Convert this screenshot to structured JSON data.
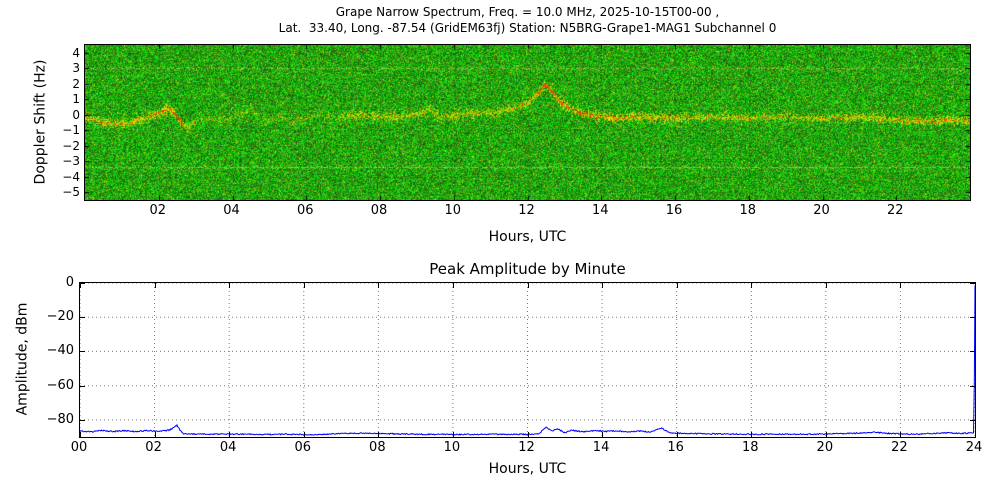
{
  "page": {
    "background": "#ffffff"
  },
  "spectrogram_panel": {
    "title_line1": "Grape Narrow Spectrum, Freq. = 10.0 MHz, 2025-10-15T00-00 ,",
    "title_line2": "Lat.  33.40, Long. -87.54 (GridEM63fj) Station: N5BRG-Grape1-MAG1 Subchannel 0",
    "xlabel": "Hours, UTC",
    "ylabel": "Doppler Shift (Hz)"
  },
  "amplitude_panel": {
    "title": "Peak Amplitude by Minute",
    "xlabel": "Hours, UTC",
    "ylabel": "Amplitude, dBm"
  },
  "chart_data": [
    {
      "type": "heatmap",
      "title": "Grape Narrow Spectrum, Freq. = 10.0 MHz, 2025-10-15T00-00 , Lat.  33.40, Long. -87.54 (GridEM63fj) Station: N5BRG-Grape1-MAG1 Subchannel 0",
      "xlabel": "Hours, UTC",
      "ylabel": "Doppler Shift (Hz)",
      "xlim": [
        0,
        24
      ],
      "ylim": [
        -5.5,
        4.5
      ],
      "xticks": [
        2,
        4,
        6,
        8,
        10,
        12,
        14,
        16,
        18,
        20,
        22
      ],
      "xtick_labels": [
        "02",
        "04",
        "06",
        "08",
        "10",
        "12",
        "14",
        "16",
        "18",
        "20",
        "22"
      ],
      "yticks": [
        4,
        3,
        2,
        1,
        0,
        -1,
        -2,
        -3,
        -4,
        -5
      ],
      "ytick_labels": [
        "4",
        "3",
        "2",
        "1",
        "0",
        "−1",
        "−2",
        "−3",
        "−4",
        "−5"
      ],
      "grid": true,
      "colors": {
        "background_noise": "#22aa00",
        "trace": "#ffee00",
        "hot_trace": "#ff2200",
        "streak": "#c8e65a"
      },
      "streak_lines_hz": [
        3.0,
        -3.4
      ],
      "doppler_trace_hz_by_hour": [
        [
          0.0,
          -0.15,
          0.95,
          0.15
        ],
        [
          0.4,
          -0.4,
          0.9,
          0.15
        ],
        [
          0.8,
          -0.6,
          0.9,
          0.2
        ],
        [
          1.2,
          -0.5,
          0.85,
          0.15
        ],
        [
          1.6,
          -0.2,
          0.85,
          0.15
        ],
        [
          2.0,
          0.15,
          0.95,
          0.3
        ],
        [
          2.25,
          0.45,
          1.0,
          0.55
        ],
        [
          2.45,
          0.05,
          1.0,
          0.75
        ],
        [
          2.6,
          -0.45,
          1.0,
          0.6
        ],
        [
          2.75,
          -0.9,
          0.7,
          0.2
        ],
        [
          3.0,
          -0.4,
          0.35,
          0.0
        ],
        [
          3.4,
          -0.2,
          0.3,
          0.0
        ],
        [
          3.8,
          -0.35,
          0.35,
          0.0
        ],
        [
          4.2,
          0.1,
          0.45,
          0.0
        ],
        [
          4.5,
          0.45,
          0.4,
          0.0
        ],
        [
          4.8,
          -0.5,
          0.45,
          0.0
        ],
        [
          5.2,
          -0.1,
          0.35,
          0.0
        ],
        [
          5.6,
          -0.45,
          0.3,
          0.0
        ],
        [
          6.0,
          -0.2,
          0.4,
          0.0
        ],
        [
          6.4,
          0.15,
          0.4,
          0.0
        ],
        [
          6.8,
          -0.25,
          0.45,
          0.0
        ],
        [
          7.2,
          -0.05,
          0.6,
          0.05
        ],
        [
          7.6,
          0.0,
          0.75,
          0.1
        ],
        [
          8.0,
          -0.05,
          0.75,
          0.1
        ],
        [
          8.4,
          -0.1,
          0.7,
          0.1
        ],
        [
          8.8,
          0.0,
          0.7,
          0.1
        ],
        [
          9.1,
          0.1,
          0.7,
          0.1
        ],
        [
          9.35,
          0.45,
          0.75,
          0.1
        ],
        [
          9.6,
          -0.15,
          0.65,
          0.05
        ],
        [
          10.0,
          0.0,
          0.7,
          0.1
        ],
        [
          10.4,
          0.1,
          0.7,
          0.1
        ],
        [
          10.8,
          0.15,
          0.75,
          0.1
        ],
        [
          11.2,
          0.25,
          0.75,
          0.15
        ],
        [
          11.6,
          0.45,
          0.8,
          0.2
        ],
        [
          12.0,
          0.8,
          0.9,
          0.35
        ],
        [
          12.3,
          1.5,
          1.0,
          0.65
        ],
        [
          12.5,
          1.95,
          1.0,
          0.85
        ],
        [
          12.7,
          1.35,
          1.0,
          0.65
        ],
        [
          12.9,
          0.8,
          1.0,
          0.55
        ],
        [
          13.1,
          0.5,
          1.0,
          0.55
        ],
        [
          13.4,
          0.15,
          1.0,
          0.6
        ],
        [
          13.7,
          0.0,
          1.0,
          0.6
        ],
        [
          14.0,
          -0.1,
          1.0,
          0.5
        ],
        [
          14.4,
          -0.2,
          0.9,
          0.35
        ],
        [
          14.8,
          -0.1,
          0.85,
          0.25
        ],
        [
          15.2,
          -0.15,
          0.8,
          0.15
        ],
        [
          15.6,
          -0.1,
          0.8,
          0.15
        ],
        [
          16.0,
          -0.2,
          0.8,
          0.15
        ],
        [
          16.5,
          -0.15,
          0.75,
          0.1
        ],
        [
          17.0,
          -0.1,
          0.75,
          0.1
        ],
        [
          17.5,
          -0.15,
          0.75,
          0.1
        ],
        [
          18.0,
          -0.2,
          0.75,
          0.1
        ],
        [
          18.5,
          -0.15,
          0.7,
          0.1
        ],
        [
          19.0,
          -0.1,
          0.7,
          0.1
        ],
        [
          19.5,
          -0.15,
          0.7,
          0.1
        ],
        [
          20.0,
          -0.2,
          0.75,
          0.1
        ],
        [
          20.5,
          -0.15,
          0.75,
          0.1
        ],
        [
          21.0,
          -0.1,
          0.8,
          0.15
        ],
        [
          21.5,
          -0.2,
          0.8,
          0.2
        ],
        [
          22.0,
          -0.3,
          0.85,
          0.3
        ],
        [
          22.5,
          -0.35,
          0.85,
          0.3
        ],
        [
          23.0,
          -0.4,
          0.9,
          0.35
        ],
        [
          23.5,
          -0.3,
          0.9,
          0.3
        ],
        [
          24.0,
          -0.4,
          0.9,
          0.3
        ]
      ],
      "description": "10 MHz Doppler spectrogram: green random noise background, yellow/red carrier trace near 0 Hz rising to about +2 Hz near 12.5 UTC, faint yellow horizontal streaks near +3.0 Hz and -3.4 Hz"
    },
    {
      "type": "line",
      "title": "Peak Amplitude by Minute",
      "xlabel": "Hours, UTC",
      "ylabel": "Amplitude, dBm",
      "xlim": [
        0,
        24
      ],
      "ylim": [
        -90,
        0
      ],
      "xticks": [
        0,
        2,
        4,
        6,
        8,
        10,
        12,
        14,
        16,
        18,
        20,
        22,
        24
      ],
      "xtick_labels": [
        "00",
        "02",
        "04",
        "06",
        "08",
        "10",
        "12",
        "14",
        "16",
        "18",
        "20",
        "22",
        "24"
      ],
      "yticks": [
        0,
        -20,
        -40,
        -60,
        -80
      ],
      "ytick_labels": [
        "0",
        "−20",
        "−40",
        "−60",
        "−80"
      ],
      "grid": true,
      "series": [
        {
          "name": "peak_amplitude_dbm",
          "color": "#0000ff",
          "points": [
            [
              0,
              -86.5
            ],
            [
              0.3,
              -87.0
            ],
            [
              0.6,
              -86.2
            ],
            [
              0.9,
              -86.8
            ],
            [
              1.2,
              -86.3
            ],
            [
              1.5,
              -86.8
            ],
            [
              1.8,
              -86.2
            ],
            [
              2.1,
              -86.6
            ],
            [
              2.4,
              -86.0
            ],
            [
              2.6,
              -83.2
            ],
            [
              2.75,
              -88.0
            ],
            [
              3.0,
              -88.3
            ],
            [
              3.5,
              -88.4
            ],
            [
              4.0,
              -88.3
            ],
            [
              4.5,
              -88.4
            ],
            [
              5.0,
              -88.5
            ],
            [
              5.5,
              -88.4
            ],
            [
              6.0,
              -88.5
            ],
            [
              6.5,
              -88.6
            ],
            [
              7.0,
              -87.9
            ],
            [
              7.5,
              -87.8
            ],
            [
              8.0,
              -88.0
            ],
            [
              8.5,
              -88.2
            ],
            [
              9.0,
              -88.3
            ],
            [
              9.5,
              -88.5
            ],
            [
              10.0,
              -88.5
            ],
            [
              10.5,
              -88.5
            ],
            [
              11.0,
              -88.4
            ],
            [
              11.5,
              -88.5
            ],
            [
              12.0,
              -88.4
            ],
            [
              12.3,
              -88.2
            ],
            [
              12.5,
              -84.2
            ],
            [
              12.65,
              -86.5
            ],
            [
              12.8,
              -85.2
            ],
            [
              13.0,
              -87.5
            ],
            [
              13.2,
              -86.0
            ],
            [
              13.5,
              -87.0
            ],
            [
              13.8,
              -86.2
            ],
            [
              14.1,
              -86.8
            ],
            [
              14.4,
              -86.4
            ],
            [
              14.7,
              -87.0
            ],
            [
              15.0,
              -86.5
            ],
            [
              15.3,
              -87.0
            ],
            [
              15.6,
              -84.8
            ],
            [
              15.8,
              -87.5
            ],
            [
              16.0,
              -87.8
            ],
            [
              16.5,
              -88.0
            ],
            [
              17.0,
              -88.2
            ],
            [
              17.5,
              -88.3
            ],
            [
              18.0,
              -88.4
            ],
            [
              18.5,
              -88.4
            ],
            [
              19.0,
              -88.3
            ],
            [
              19.5,
              -88.4
            ],
            [
              20.0,
              -88.2
            ],
            [
              20.5,
              -88.0
            ],
            [
              21.0,
              -87.6
            ],
            [
              21.3,
              -87.2
            ],
            [
              21.6,
              -87.8
            ],
            [
              22.0,
              -88.2
            ],
            [
              22.5,
              -88.3
            ],
            [
              23.0,
              -87.8
            ],
            [
              23.3,
              -87.5
            ],
            [
              23.6,
              -87.9
            ],
            [
              23.9,
              -87.7
            ],
            [
              23.97,
              -87.6
            ],
            [
              24.0,
              -1.5
            ]
          ]
        }
      ]
    }
  ]
}
